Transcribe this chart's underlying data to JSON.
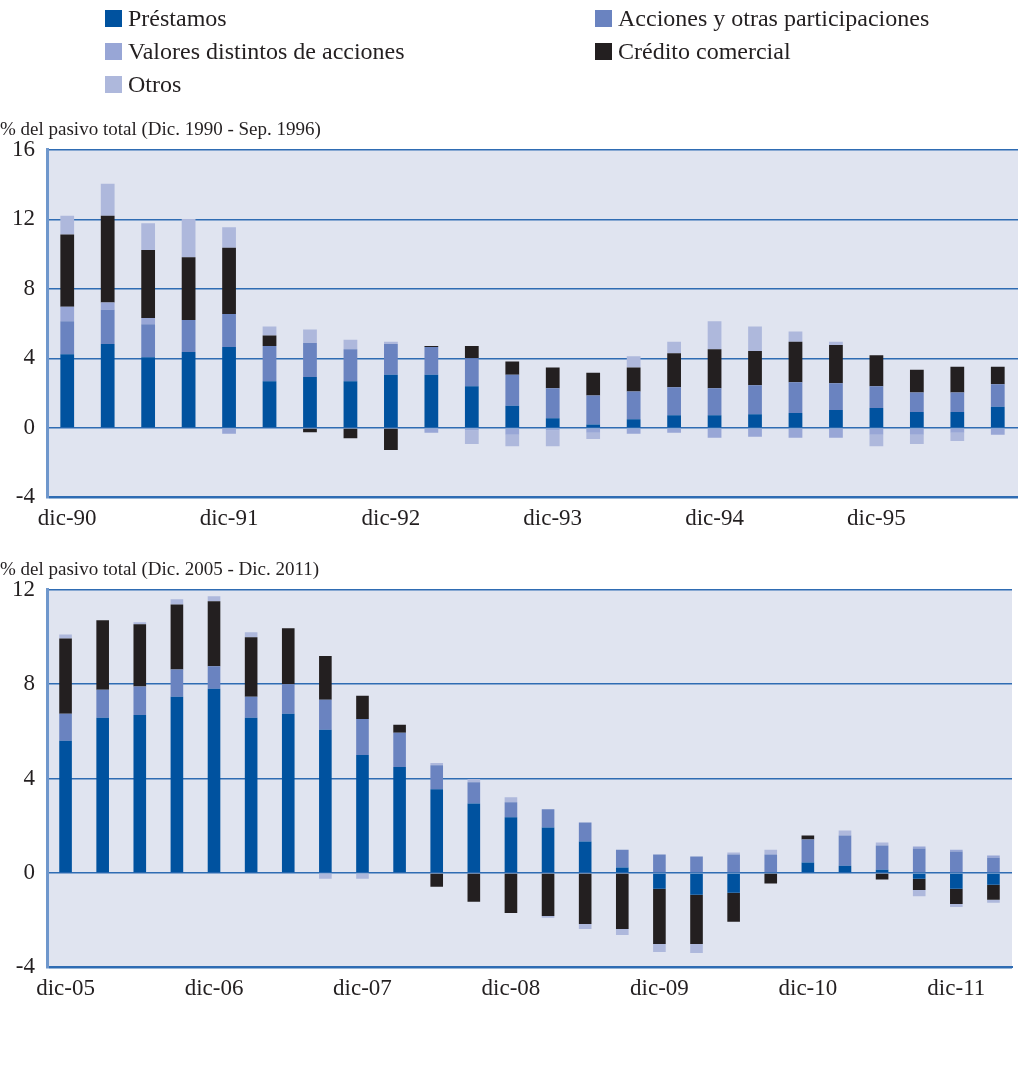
{
  "chart_data": [
    {
      "type": "bar",
      "title": "% del pasivo total (Dic. 1990 - Sep. 1996)",
      "stacked": true,
      "grid": "y",
      "legend": "top",
      "categories": [
        "dic-90",
        null,
        null,
        null,
        "dic-91",
        null,
        null,
        null,
        "dic-92",
        null,
        null,
        null,
        "dic-93",
        null,
        null,
        null,
        "dic-94",
        null,
        null,
        null,
        "dic-95",
        null,
        null,
        null
      ],
      "ylim": [
        -4,
        16
      ],
      "yticks": [
        -4,
        0,
        4,
        8,
        12,
        16
      ],
      "series": [
        {
          "name": "Préstamos",
          "color": "#00529f",
          "values": [
            4.24,
            4.83,
            4.06,
            4.36,
            4.65,
            2.69,
            2.93,
            2.69,
            3.05,
            3.05,
            2.4,
            1.27,
            0.55,
            0.2,
            0.5,
            0.73,
            0.73,
            0.79,
            0.85,
            1.03,
            1.15,
            0.91,
            0.91,
            1.21
          ]
        },
        {
          "name": "Acciones y otras participaciones",
          "color": "#6a83c0",
          "values": [
            1.9,
            1.96,
            1.9,
            1.84,
            1.9,
            2.02,
            1.96,
            1.84,
            1.78,
            1.6,
            1.6,
            1.78,
            1.73,
            1.66,
            1.6,
            1.61,
            1.55,
            1.67,
            1.78,
            1.54,
            1.25,
            1.13,
            1.13,
            1.3
          ]
        },
        {
          "name": "Valores distintos de acciones",
          "color": "#98a6d6",
          "values": [
            0.83,
            0.42,
            0.36,
            null,
            -0.34,
            null,
            null,
            null,
            null,
            -0.28,
            -0.15,
            -0.4,
            -0.15,
            -0.28,
            -0.34,
            -0.28,
            -0.57,
            -0.51,
            -0.57,
            -0.57,
            -0.4,
            -0.4,
            -0.28,
            -0.4
          ]
        },
        {
          "name": "Crédito comercial",
          "color": "#231f20",
          "values": [
            4.16,
            4.99,
            3.92,
            3.62,
            3.81,
            0.6,
            -0.25,
            -0.6,
            -1.27,
            0.06,
            0.71,
            0.77,
            1.19,
            1.31,
            1.37,
            1.96,
            2.25,
            1.96,
            2.32,
            2.2,
            1.78,
            1.31,
            1.48,
            1.01
          ]
        },
        {
          "name": "Otros",
          "color": "#aeb8dc",
          "values": [
            1.07,
            1.84,
            1.54,
            2.2,
            1.18,
            0.53,
            0.77,
            0.54,
            0.12,
            null,
            -0.78,
            -0.65,
            -0.9,
            -0.36,
            0.65,
            0.65,
            1.61,
            1.42,
            0.59,
            0.18,
            -0.65,
            -0.53,
            -0.47,
            null
          ]
        }
      ]
    },
    {
      "type": "bar",
      "title": "% del pasivo total (Dic. 2005 - Dic. 2011)",
      "stacked": true,
      "grid": "y",
      "categories": [
        "dic-05",
        null,
        null,
        null,
        "dic-06",
        null,
        null,
        null,
        "dic-07",
        null,
        null,
        null,
        "dic-08",
        null,
        null,
        null,
        "dic-09",
        null,
        null,
        null,
        "dic-10",
        null,
        null,
        null,
        "dic-11",
        null
      ],
      "ylim": [
        -4,
        12
      ],
      "yticks": [
        -4,
        0,
        4,
        8,
        12
      ],
      "series": [
        {
          "color": "#00529f",
          "values": [
            5.6,
            6.58,
            6.7,
            7.47,
            7.81,
            6.58,
            6.75,
            6.07,
            5.0,
            4.49,
            3.55,
            2.95,
            2.36,
            1.93,
            1.33,
            0.23,
            -0.67,
            -0.92,
            -0.84,
            null,
            0.44,
            0.31,
            0.14,
            -0.24,
            -0.67,
            -0.5
          ]
        },
        {
          "color": "#6a83c0",
          "values": [
            1.15,
            1.19,
            1.2,
            1.15,
            0.95,
            0.89,
            1.25,
            1.27,
            1.53,
            1.45,
            1.02,
            0.9,
            0.64,
            0.77,
            0.81,
            0.76,
            0.78,
            0.7,
            0.78,
            0.78,
            0.98,
            1.28,
            1.02,
            1.04,
            0.91,
            0.65
          ]
        },
        {
          "color": "#98a6d6",
          "values": [
            null,
            null,
            null,
            null,
            null,
            null,
            null,
            null,
            null,
            null,
            null,
            null,
            null,
            null,
            null,
            null,
            null,
            null,
            null,
            null,
            null,
            null,
            null,
            0.08,
            0.08,
            0.09
          ]
        },
        {
          "color": "#231f20",
          "values": [
            3.19,
            2.94,
            2.64,
            2.76,
            2.76,
            2.52,
            2.37,
            1.86,
            0.98,
            0.34,
            -0.58,
            -1.22,
            -1.69,
            -1.82,
            -2.16,
            -2.37,
            -2.34,
            -2.09,
            -1.23,
            -0.45,
            0.17,
            null,
            -0.28,
            -0.48,
            -0.64,
            -0.63
          ]
        },
        {
          "color": "#aeb8dc",
          "values": [
            0.17,
            null,
            0.08,
            0.22,
            0.21,
            0.21,
            null,
            -0.24,
            -0.24,
            null,
            0.09,
            0.13,
            0.21,
            -0.08,
            -0.21,
            -0.26,
            -0.34,
            -0.38,
            0.09,
            0.21,
            null,
            0.21,
            0.13,
            -0.26,
            -0.13,
            -0.13
          ]
        }
      ]
    }
  ]
}
